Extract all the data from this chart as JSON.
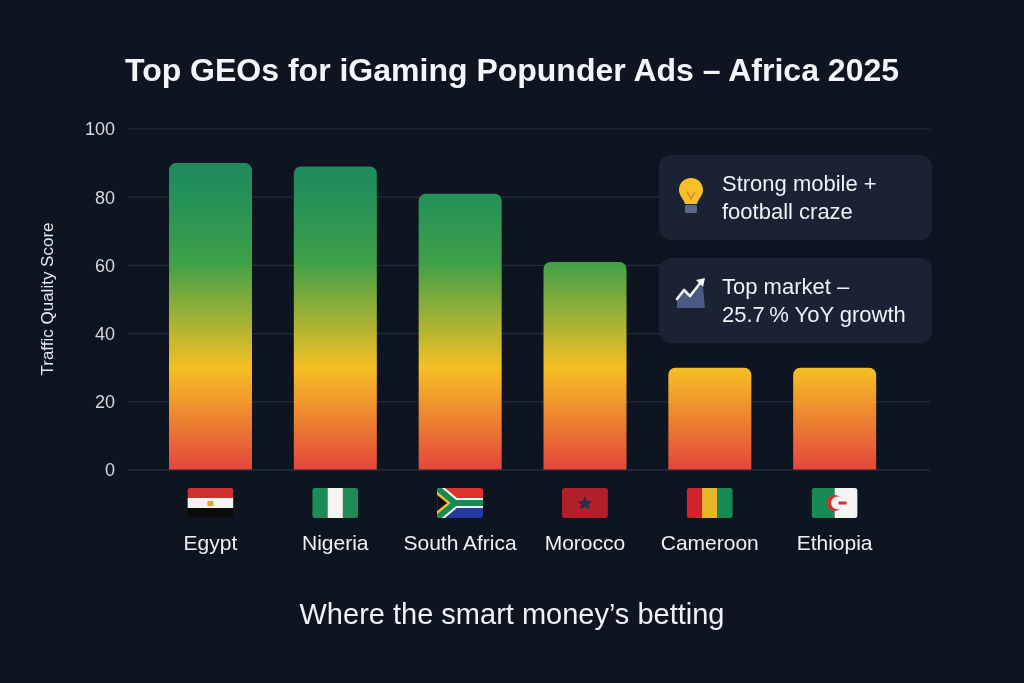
{
  "chart_data": {
    "type": "bar",
    "title": "Top GEOs for iGaming Popunder Ads – Africa 2025",
    "ylabel": "Traffic Quality Score",
    "categories": [
      "Egypt",
      "Nigeria",
      "South Africa",
      "Morocco",
      "Cameroon",
      "Ethiopia"
    ],
    "values": [
      90,
      89,
      81,
      61,
      30,
      30
    ],
    "colors": [
      "#1f8a5c",
      "#1f8a5c",
      "#23905a",
      "#3fa048",
      "#f5c024",
      "#f5c024"
    ],
    "ylim": [
      0,
      100
    ],
    "yticks": [
      0,
      20,
      40,
      60,
      80,
      100
    ],
    "grid": "y",
    "annotations": [
      "Strong mobile + football craze",
      "Top market – 25.7 % YoY growth",
      "Where the smart money’s betting"
    ]
  }
}
